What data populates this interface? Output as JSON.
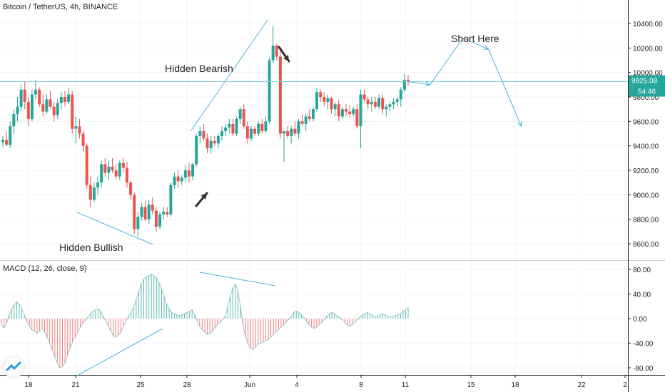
{
  "header": {
    "title": "Bitcoin / TetherUS, 4h, BINANCE"
  },
  "macd_label": "MACD (12, 26, close, 9)",
  "colors": {
    "up": "#26a69a",
    "down": "#ef5350",
    "grid": "#f0f3fa",
    "annotation": "#4fb3d9",
    "price_line": "#7fd4d4"
  },
  "icons": {
    "logo": "tradingview-logo-icon",
    "arrow_down": "arrow-down-right-icon",
    "arrow_up": "arrow-up-right-icon"
  },
  "chart_data": [
    {
      "type": "candlestick",
      "title": "Bitcoin / TetherUS, 4h, BINANCE",
      "ylim": [
        8500,
        10560
      ],
      "y_ticks": [
        "8600.00",
        "8800.00",
        "9000.00",
        "9200.00",
        "9400.00",
        "9600.00",
        "9800.00",
        "10000.00",
        "10200.00",
        "10400.00"
      ],
      "x_ticks": [
        "18",
        "21",
        "25",
        "28",
        "Jun",
        "4",
        "8",
        "11",
        "15",
        "18",
        "22",
        "2"
      ],
      "last_price": "9925.08",
      "countdown": "54:46",
      "annotations": [
        "Hidden Bearish",
        "Hidden Bullish",
        "Short Here"
      ],
      "candles": [
        [
          9430,
          9480,
          9390,
          9450
        ],
        [
          9450,
          9520,
          9400,
          9410
        ],
        [
          9410,
          9600,
          9380,
          9560
        ],
        [
          9560,
          9700,
          9500,
          9660
        ],
        [
          9660,
          9800,
          9600,
          9720
        ],
        [
          9720,
          9900,
          9680,
          9860
        ],
        [
          9860,
          9930,
          9700,
          9760
        ],
        [
          9760,
          9800,
          9560,
          9620
        ],
        [
          9620,
          9860,
          9600,
          9820
        ],
        [
          9820,
          9940,
          9780,
          9860
        ],
        [
          9860,
          9880,
          9720,
          9740
        ],
        [
          9740,
          9820,
          9640,
          9680
        ],
        [
          9680,
          9820,
          9660,
          9780
        ],
        [
          9780,
          9850,
          9700,
          9720
        ],
        [
          9720,
          9760,
          9600,
          9650
        ],
        [
          9650,
          9780,
          9620,
          9750
        ],
        [
          9750,
          9840,
          9700,
          9800
        ],
        [
          9800,
          9850,
          9720,
          9760
        ],
        [
          9760,
          9870,
          9740,
          9820
        ],
        [
          9820,
          9850,
          9500,
          9540
        ],
        [
          9540,
          9640,
          9420,
          9560
        ],
        [
          9560,
          9620,
          9460,
          9500
        ],
        [
          9500,
          9520,
          9350,
          9400
        ],
        [
          9400,
          9420,
          9050,
          9080
        ],
        [
          9080,
          9150,
          8900,
          8960
        ],
        [
          8960,
          9100,
          8940,
          9060
        ],
        [
          9060,
          9150,
          9000,
          9100
        ],
        [
          9100,
          9280,
          9060,
          9250
        ],
        [
          9250,
          9300,
          9150,
          9180
        ],
        [
          9180,
          9280,
          9120,
          9230
        ],
        [
          9230,
          9300,
          9180,
          9200
        ],
        [
          9200,
          9250,
          9120,
          9150
        ],
        [
          9150,
          9280,
          9120,
          9260
        ],
        [
          9260,
          9300,
          9180,
          9220
        ],
        [
          9220,
          9270,
          9060,
          9100
        ],
        [
          9100,
          9120,
          8960,
          9000
        ],
        [
          9000,
          9020,
          8680,
          8720
        ],
        [
          8720,
          8860,
          8660,
          8820
        ],
        [
          8820,
          8930,
          8790,
          8900
        ],
        [
          8900,
          8950,
          8780,
          8800
        ],
        [
          8800,
          8960,
          8760,
          8920
        ],
        [
          8920,
          8980,
          8840,
          8870
        ],
        [
          8870,
          8900,
          8700,
          8740
        ],
        [
          8740,
          8860,
          8720,
          8840
        ],
        [
          8840,
          8900,
          8800,
          8860
        ],
        [
          8860,
          8900,
          8820,
          8840
        ],
        [
          8840,
          9100,
          8820,
          9080
        ],
        [
          9080,
          9180,
          9050,
          9150
        ],
        [
          9150,
          9200,
          9060,
          9110
        ],
        [
          9110,
          9160,
          9080,
          9140
        ],
        [
          9140,
          9240,
          9100,
          9200
        ],
        [
          9200,
          9260,
          9100,
          9150
        ],
        [
          9150,
          9260,
          9120,
          9250
        ],
        [
          9250,
          9500,
          9230,
          9480
        ],
        [
          9480,
          9560,
          9420,
          9520
        ],
        [
          9520,
          9580,
          9440,
          9460
        ],
        [
          9460,
          9500,
          9340,
          9380
        ],
        [
          9380,
          9480,
          9340,
          9440
        ],
        [
          9440,
          9480,
          9400,
          9420
        ],
        [
          9420,
          9500,
          9380,
          9480
        ],
        [
          9480,
          9560,
          9440,
          9520
        ],
        [
          9520,
          9580,
          9480,
          9550
        ],
        [
          9550,
          9620,
          9500,
          9580
        ],
        [
          9580,
          9620,
          9480,
          9500
        ],
        [
          9500,
          9640,
          9480,
          9620
        ],
        [
          9620,
          9720,
          9580,
          9700
        ],
        [
          9700,
          9740,
          9540,
          9560
        ],
        [
          9560,
          9600,
          9420,
          9460
        ],
        [
          9460,
          9560,
          9440,
          9540
        ],
        [
          9540,
          9560,
          9480,
          9500
        ],
        [
          9500,
          9600,
          9480,
          9580
        ],
        [
          9580,
          9620,
          9500,
          9520
        ],
        [
          9520,
          9640,
          9500,
          9600
        ],
        [
          9600,
          10120,
          9580,
          10100
        ],
        [
          10100,
          10380,
          10080,
          10220
        ],
        [
          10220,
          10230,
          10100,
          10130
        ],
        [
          10130,
          10200,
          9460,
          9500
        ],
        [
          9500,
          9520,
          9270,
          9520
        ],
        [
          9520,
          9560,
          9460,
          9480
        ],
        [
          9480,
          9560,
          9420,
          9540
        ],
        [
          9540,
          9600,
          9480,
          9500
        ],
        [
          9500,
          9620,
          9460,
          9600
        ],
        [
          9600,
          9660,
          9560,
          9580
        ],
        [
          9580,
          9660,
          9520,
          9640
        ],
        [
          9640,
          9700,
          9600,
          9620
        ],
        [
          9620,
          9720,
          9600,
          9700
        ],
        [
          9700,
          9870,
          9680,
          9840
        ],
        [
          9840,
          9860,
          9760,
          9800
        ],
        [
          9800,
          9840,
          9720,
          9760
        ],
        [
          9760,
          9820,
          9700,
          9790
        ],
        [
          9790,
          9800,
          9660,
          9700
        ],
        [
          9700,
          9760,
          9640,
          9740
        ],
        [
          9740,
          9780,
          9600,
          9640
        ],
        [
          9640,
          9720,
          9620,
          9700
        ],
        [
          9700,
          9740,
          9640,
          9680
        ],
        [
          9680,
          9730,
          9630,
          9660
        ],
        [
          9660,
          9720,
          9640,
          9700
        ],
        [
          9700,
          9740,
          9540,
          9560
        ],
        [
          9560,
          9860,
          9380,
          9820
        ],
        [
          9820,
          9860,
          9760,
          9780
        ],
        [
          9780,
          9800,
          9700,
          9740
        ],
        [
          9740,
          9800,
          9680,
          9760
        ],
        [
          9760,
          9800,
          9700,
          9720
        ],
        [
          9720,
          9820,
          9700,
          9790
        ],
        [
          9790,
          9820,
          9660,
          9700
        ],
        [
          9700,
          9740,
          9640,
          9720
        ],
        [
          9720,
          9760,
          9680,
          9740
        ],
        [
          9740,
          9790,
          9700,
          9760
        ],
        [
          9760,
          9800,
          9720,
          9780
        ],
        [
          9780,
          9880,
          9720,
          9860
        ],
        [
          9860,
          9990,
          9840,
          9940
        ],
        [
          9940,
          9980,
          9890,
          9925
        ]
      ],
      "projection_path": [
        [
          0,
          9925
        ],
        [
          6,
          9900
        ],
        [
          15,
          10280
        ],
        [
          22,
          10190
        ],
        [
          31,
          9560
        ]
      ],
      "projection_note": "x offset in bars after last candle"
    },
    {
      "type": "bar",
      "title": "MACD (12, 26, close, 9)",
      "ylim": [
        -90,
        90
      ],
      "y_ticks": [
        "80.00",
        "40.00",
        "0.00",
        "-40.00",
        "-80.00"
      ],
      "histogram": [
        -10,
        -15,
        -8,
        5,
        15,
        22,
        27,
        24,
        16,
        6,
        -4,
        -12,
        -18,
        -20,
        -24,
        -20,
        -15,
        -22,
        -30,
        -40,
        -52,
        -62,
        -72,
        -80,
        -78,
        -72,
        -60,
        -48,
        -38,
        -30,
        -22,
        -14,
        -8,
        -3,
        2,
        8,
        12,
        14,
        16,
        12,
        4,
        -4,
        -12,
        -20,
        -28,
        -30,
        -26,
        -22,
        -12,
        -4,
        4,
        10,
        18,
        30,
        44,
        56,
        64,
        68,
        70,
        72,
        70,
        66,
        58,
        48,
        36,
        24,
        16,
        10,
        8,
        6,
        5,
        6,
        8,
        10,
        12,
        14,
        6,
        -4,
        -12,
        -18,
        -22,
        -26,
        -24,
        -20,
        -15,
        -10,
        -6,
        -2,
        4,
        18,
        36,
        50,
        56,
        45,
        20,
        -10,
        -30,
        -40,
        -48,
        -50,
        -46,
        -42,
        -40,
        -38,
        -36,
        -34,
        -30,
        -26,
        -22,
        -18,
        -14,
        -10,
        -6,
        -2,
        4,
        10,
        12,
        10,
        6,
        2,
        -4,
        -10,
        -14,
        -16,
        -14,
        -10,
        -6,
        -2,
        4,
        8,
        10,
        8,
        4,
        2,
        -2,
        -6,
        -10,
        -12,
        -10,
        -6,
        -2,
        2,
        6,
        8,
        10,
        8,
        5,
        3,
        4,
        6,
        8,
        6,
        4,
        2,
        3,
        5,
        6,
        8,
        12,
        14,
        18
      ]
    }
  ]
}
